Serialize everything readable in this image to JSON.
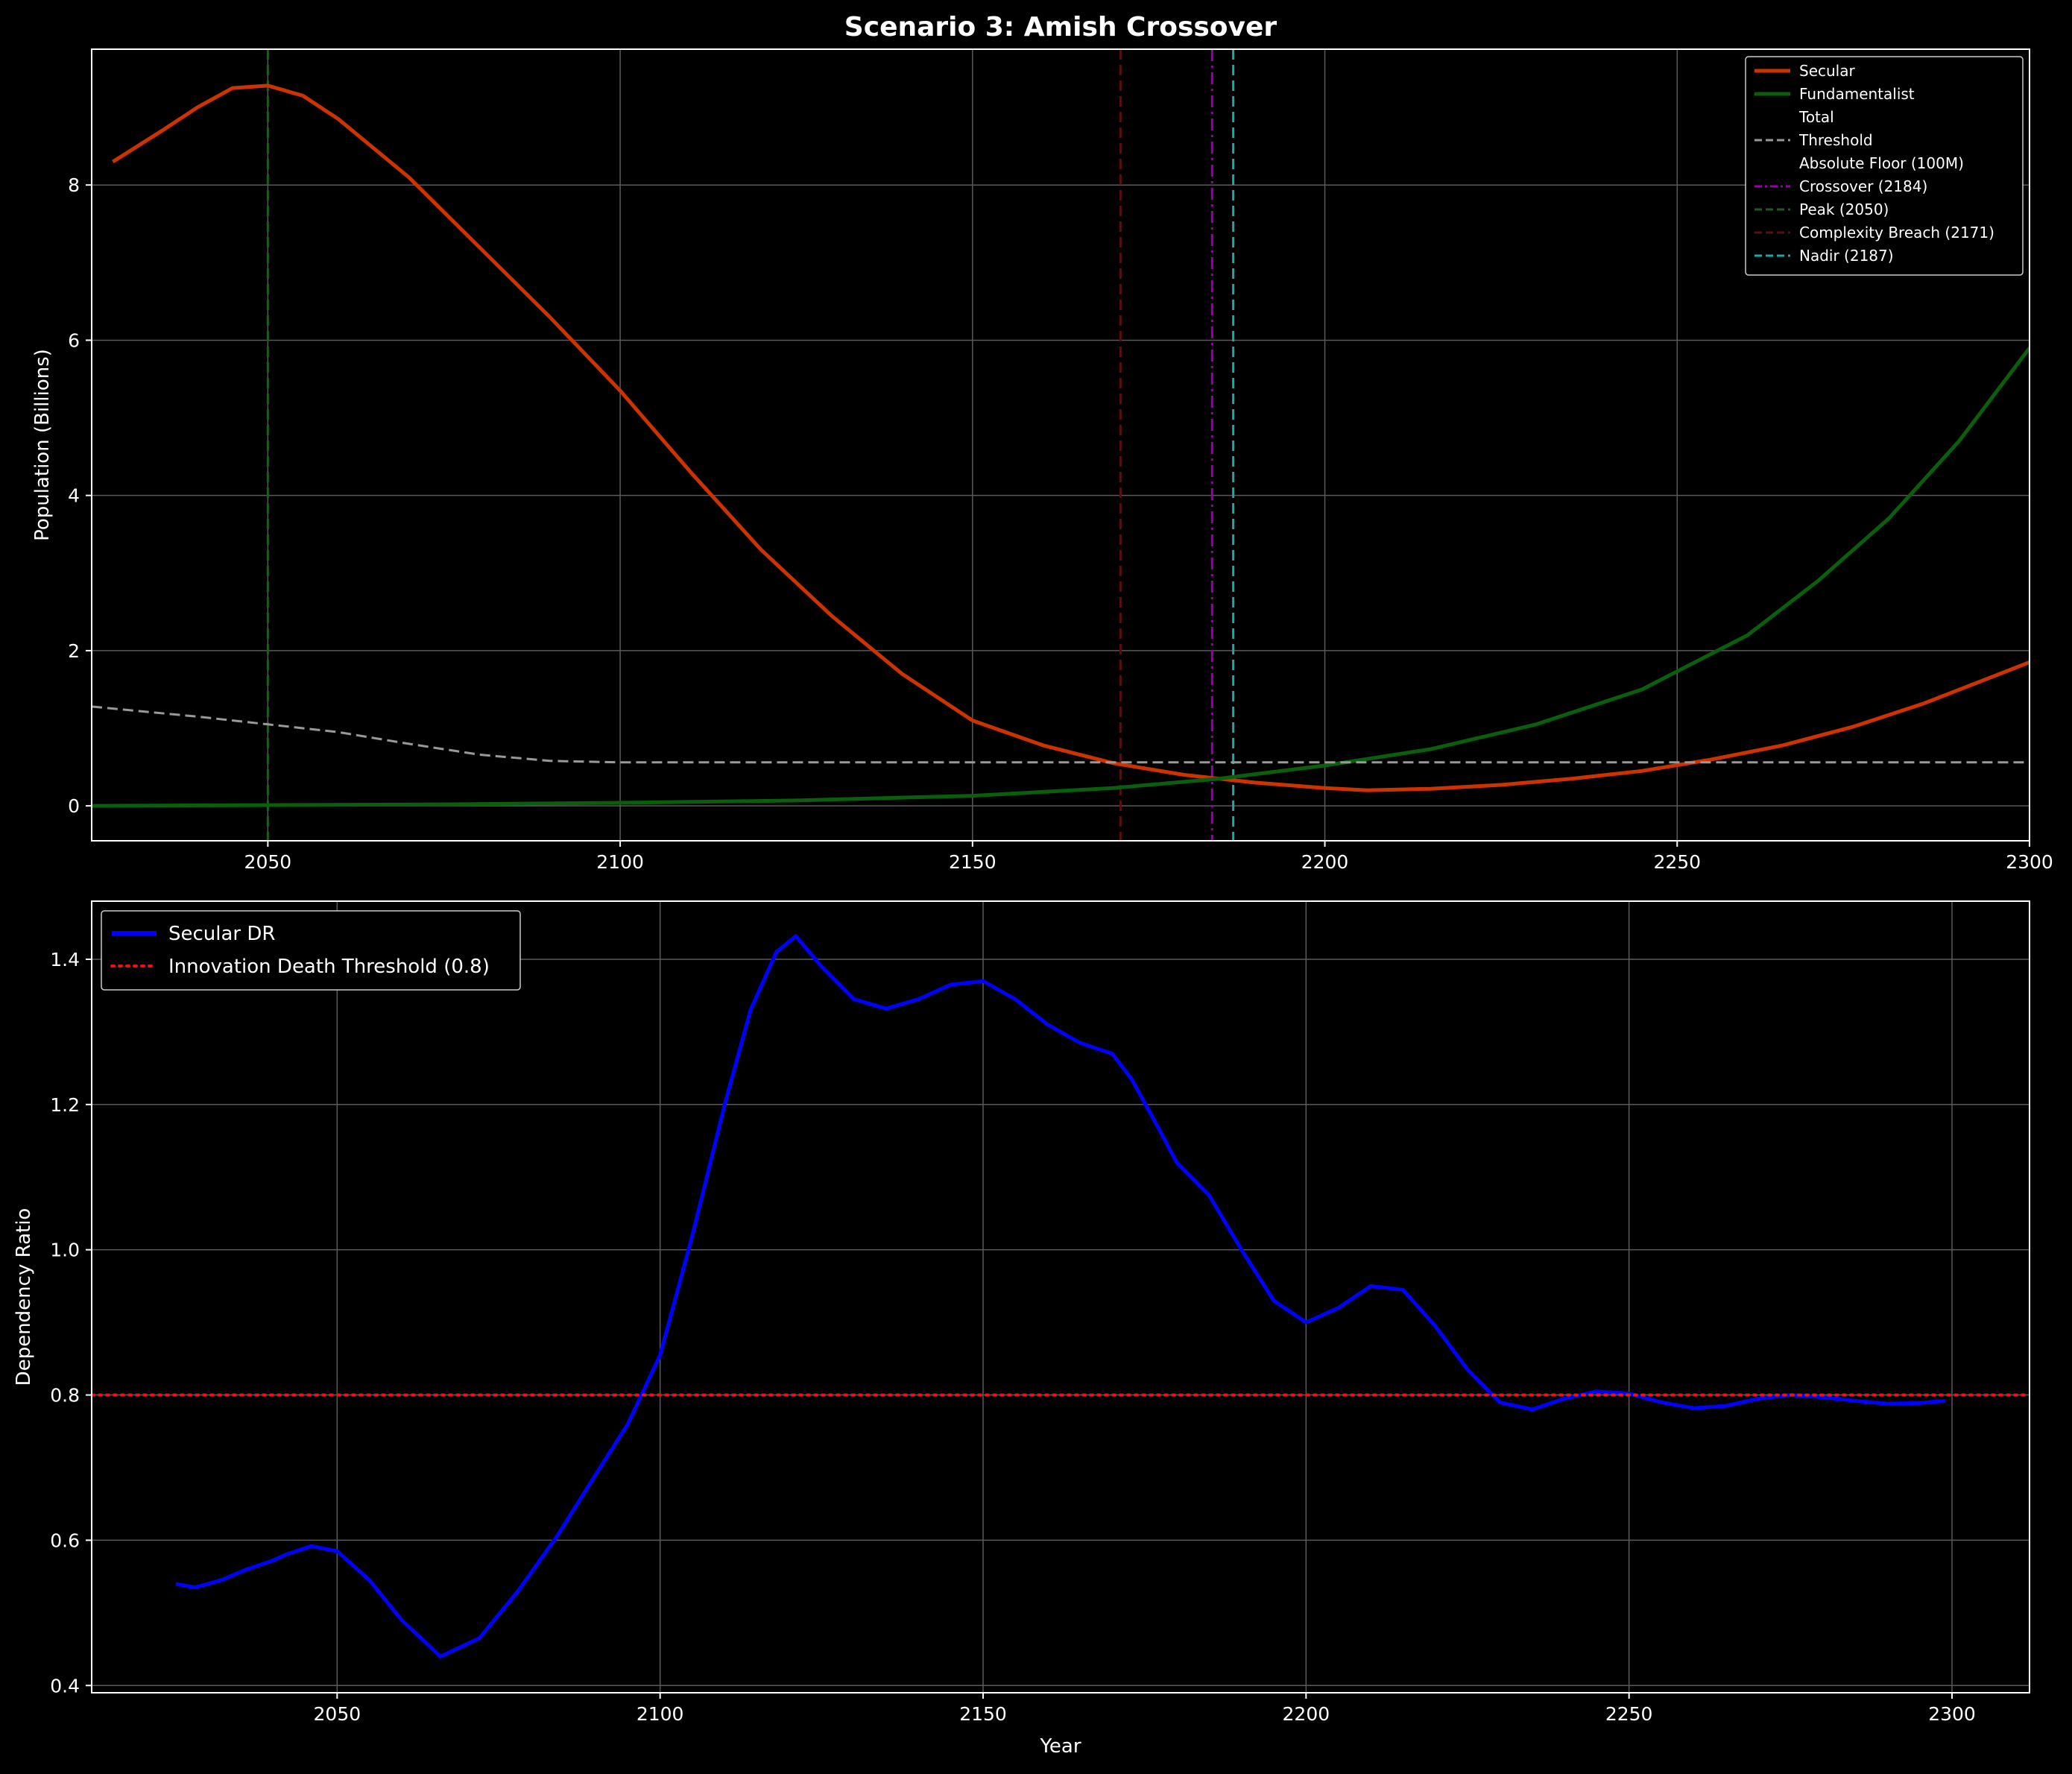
{
  "chart_data": [
    {
      "type": "line",
      "title": "Scenario 3: Amish Crossover",
      "xlabel": "",
      "ylabel": "Population (Billions)",
      "xlim": [
        2025,
        2300
      ],
      "ylim": [
        -0.45,
        9.75
      ],
      "xticks": [
        2050,
        2100,
        2150,
        2200,
        2250,
        2300
      ],
      "yticks": [
        0,
        2,
        4,
        6,
        8
      ],
      "grid": true,
      "legend_position": "top-right",
      "series": [
        {
          "name": "Secular",
          "color": "#cc3300",
          "style": "solid",
          "x": [
            2028,
            2035,
            2040,
            2045,
            2050,
            2055,
            2060,
            2070,
            2080,
            2090,
            2100,
            2110,
            2120,
            2130,
            2140,
            2150,
            2160,
            2170,
            2180,
            2190,
            2200,
            2206,
            2215,
            2225,
            2235,
            2245,
            2255,
            2265,
            2275,
            2285,
            2300
          ],
          "y": [
            8.3,
            8.7,
            9.0,
            9.25,
            9.28,
            9.15,
            8.85,
            8.1,
            7.2,
            6.3,
            5.35,
            4.3,
            3.3,
            2.45,
            1.7,
            1.1,
            0.78,
            0.55,
            0.4,
            0.3,
            0.23,
            0.2,
            0.22,
            0.27,
            0.35,
            0.45,
            0.6,
            0.78,
            1.02,
            1.32,
            1.85
          ]
        },
        {
          "name": "Fundamentalist",
          "color": "#0b5e0b",
          "style": "solid",
          "x": [
            2025,
            2050,
            2075,
            2100,
            2125,
            2150,
            2170,
            2185,
            2200,
            2215,
            2230,
            2245,
            2260,
            2270,
            2280,
            2290,
            2300
          ],
          "y": [
            0.0,
            0.01,
            0.02,
            0.04,
            0.07,
            0.13,
            0.23,
            0.35,
            0.52,
            0.73,
            1.05,
            1.5,
            2.2,
            2.9,
            3.7,
            4.7,
            5.9
          ]
        },
        {
          "name": "Total",
          "color": "#000000",
          "style": "solid",
          "x": [],
          "y": []
        },
        {
          "name": "Threshold",
          "color": "#999999",
          "style": "dashed",
          "x": [
            2025,
            2040,
            2050,
            2060,
            2070,
            2080,
            2090,
            2100,
            2300
          ],
          "y": [
            1.28,
            1.15,
            1.05,
            0.95,
            0.8,
            0.66,
            0.58,
            0.56,
            0.56
          ]
        },
        {
          "name": "Absolute Floor (100M)",
          "color": "#000000",
          "style": "solid",
          "x": [],
          "y": []
        }
      ],
      "vlines": [
        {
          "name": "Crossover (2184)",
          "x": 2184,
          "color": "#9900aa",
          "style": "dashdot"
        },
        {
          "name": "Peak (2050)",
          "x": 2050,
          "color": "#1f5a1f",
          "style": "dashed"
        },
        {
          "name": "Complexity Breach (2171)",
          "x": 2171,
          "color": "#5a0f0f",
          "style": "dashed"
        },
        {
          "name": "Nadir (2187)",
          "x": 2187,
          "color": "#1fa6a6",
          "style": "dashed"
        }
      ]
    },
    {
      "type": "line",
      "title": "",
      "xlabel": "Year",
      "ylabel": "Dependency Ratio",
      "xlim": [
        2012,
        2312
      ],
      "ylim": [
        0.39,
        1.48
      ],
      "xticks": [
        2050,
        2100,
        2150,
        2200,
        2250,
        2300
      ],
      "yticks": [
        0.4,
        0.6,
        0.8,
        1.0,
        1.2,
        1.4
      ],
      "grid": true,
      "legend_position": "top-left",
      "series": [
        {
          "name": "Secular DR",
          "color": "#0000ff",
          "style": "solid",
          "x": [
            2025,
            2028,
            2032,
            2036,
            2040,
            2042,
            2046,
            2050,
            2055,
            2060,
            2066,
            2072,
            2078,
            2084,
            2090,
            2095,
            2100,
            2105,
            2110,
            2114,
            2118,
            2121,
            2125,
            2130,
            2135,
            2140,
            2145,
            2150,
            2155,
            2160,
            2165,
            2170,
            2173,
            2177,
            2180,
            2185,
            2190,
            2195,
            2200,
            2205,
            2210,
            2215,
            2220,
            2225,
            2230,
            2235,
            2240,
            2245,
            2250,
            2255,
            2260,
            2265,
            2270,
            2275,
            2280,
            2285,
            2290,
            2295,
            2299
          ],
          "y": [
            0.54,
            0.535,
            0.545,
            0.56,
            0.572,
            0.58,
            0.592,
            0.585,
            0.545,
            0.49,
            0.44,
            0.465,
            0.53,
            0.605,
            0.69,
            0.76,
            0.855,
            1.02,
            1.2,
            1.33,
            1.41,
            1.432,
            1.39,
            1.345,
            1.332,
            1.345,
            1.365,
            1.37,
            1.345,
            1.31,
            1.285,
            1.27,
            1.235,
            1.17,
            1.12,
            1.075,
            1.0,
            0.93,
            0.9,
            0.92,
            0.95,
            0.945,
            0.895,
            0.835,
            0.79,
            0.78,
            0.795,
            0.805,
            0.802,
            0.79,
            0.782,
            0.785,
            0.795,
            0.8,
            0.797,
            0.792,
            0.788,
            0.789,
            0.792
          ]
        },
        {
          "name": "Innovation Death Threshold (0.8)",
          "color": "#ee1111",
          "style": "dotted",
          "x": [
            2012,
            2312
          ],
          "y": [
            0.8,
            0.8
          ]
        }
      ]
    }
  ]
}
